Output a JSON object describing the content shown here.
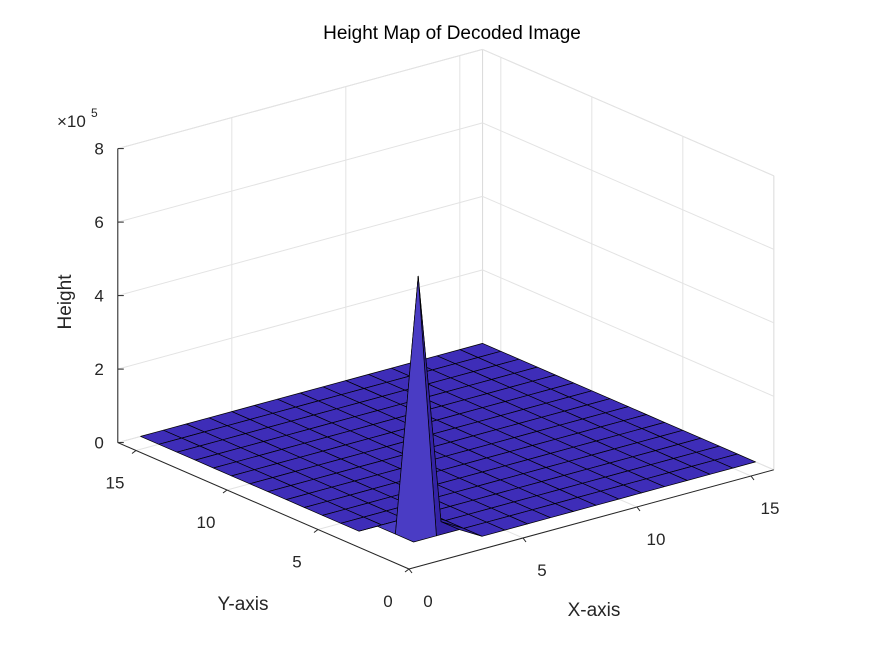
{
  "chart_data": {
    "type": "surface",
    "title": "Height Map of Decoded Image",
    "xlabel": "X-axis",
    "ylabel": "Y-axis",
    "zlabel": "Height",
    "z_exponent_label": "×10",
    "z_exponent_power": "5",
    "xlim": [
      0,
      16
    ],
    "ylim": [
      0,
      16
    ],
    "zlim": [
      0,
      800000
    ],
    "x_ticks": [
      0,
      5,
      10,
      15
    ],
    "y_ticks": [
      0,
      5,
      10,
      15
    ],
    "z_ticks": [
      0,
      200000,
      400000,
      600000,
      800000
    ],
    "x_tick_labels": [
      "0",
      "5",
      "10",
      "15"
    ],
    "y_tick_labels": [
      "0",
      "5",
      "10",
      "15"
    ],
    "z_tick_labels": [
      "0",
      "2",
      "4",
      "6",
      "8"
    ],
    "grid": true,
    "grid_size": [
      16,
      16
    ],
    "peak": {
      "x": 1,
      "y": 1,
      "z": 720000
    },
    "neighbor_height": 35000,
    "face_color": "#3e2db8",
    "edge_color": "#000000"
  }
}
